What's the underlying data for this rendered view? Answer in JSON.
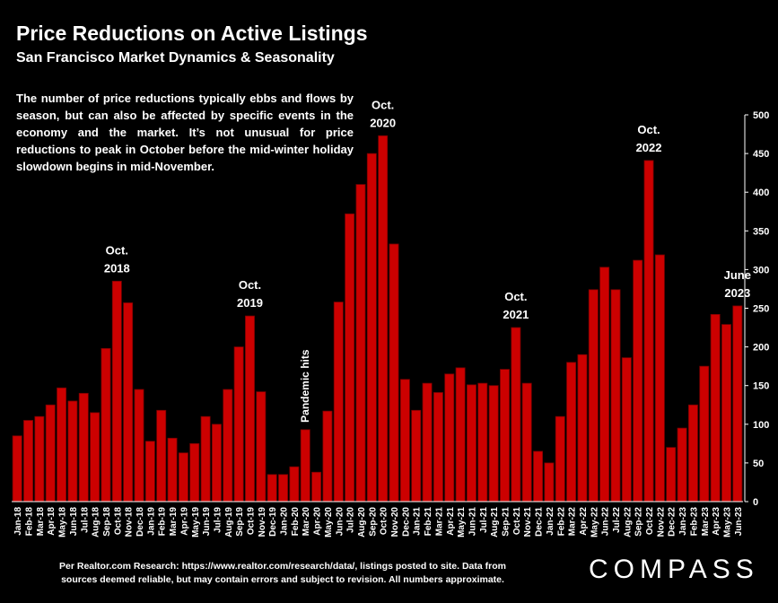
{
  "title": "Price Reductions on Active Listings",
  "subtitle": "San Francisco Market Dynamics & Seasonality",
  "description": "The number of price reductions typically ebbs and flows by season, but can also be affected by specific events in the economy and the market. It’s not unusual for price reductions to peak in October before the mid-winter holiday slowdown begins in mid-November.",
  "footnote": {
    "line1": "Per Realtor.com Research:  https://www.realtor.com/research/data/, listings posted to site. Data from",
    "line2": "sources deemed reliable, but may contain errors and subject to revision. All numbers approximate."
  },
  "logo": "COMPASS",
  "colors": {
    "background": "#000000",
    "bar": "#cc0000",
    "bar_edge": "#7a0000",
    "text": "#ffffff"
  },
  "chart_data": {
    "type": "bar",
    "categories": [
      "Jan-18",
      "Feb-18",
      "Mar-18",
      "Apr-18",
      "May-18",
      "Jun-18",
      "Jul-18",
      "Aug-18",
      "Sep-18",
      "Oct-18",
      "Nov-18",
      "Dec-18",
      "Jan-19",
      "Feb-19",
      "Mar-19",
      "Apr-19",
      "May-19",
      "Jun-19",
      "Jul-19",
      "Aug-19",
      "Sep-19",
      "Oct-19",
      "Nov-19",
      "Dec-19",
      "Jan-20",
      "Feb-20",
      "Mar-20",
      "Apr-20",
      "May-20",
      "Jun-20",
      "Jul-20",
      "Aug-20",
      "Sep-20",
      "Oct-20",
      "Nov-20",
      "Dec-20",
      "Jan-21",
      "Feb-21",
      "Mar-21",
      "Apr-21",
      "May-21",
      "Jun-21",
      "Jul-21",
      "Aug-21",
      "Sep-21",
      "Oct-21",
      "Nov-21",
      "Dec-21",
      "Jan-22",
      "Feb-22",
      "Mar-22",
      "Apr-22",
      "May-22",
      "Jun-22",
      "Jul-22",
      "Aug-22",
      "Sep-22",
      "Oct-22",
      "Nov-22",
      "Dec-22",
      "Jan-23",
      "Feb-23",
      "Mar-23",
      "Apr-23",
      "May-23",
      "Jun-23"
    ],
    "values": [
      85,
      105,
      110,
      125,
      147,
      130,
      140,
      115,
      198,
      285,
      257,
      145,
      78,
      118,
      82,
      63,
      75,
      110,
      100,
      145,
      200,
      240,
      142,
      35,
      35,
      45,
      93,
      38,
      117,
      258,
      372,
      410,
      450,
      473,
      333,
      158,
      118,
      153,
      141,
      165,
      173,
      151,
      153,
      150,
      171,
      225,
      153,
      65,
      50,
      110,
      180,
      190,
      274,
      303,
      274,
      186,
      312,
      441,
      319,
      70,
      95,
      125,
      175,
      242,
      229,
      253
    ],
    "ylim": [
      0,
      500
    ],
    "yticks": [
      0,
      50,
      100,
      150,
      200,
      250,
      300,
      350,
      400,
      450,
      500
    ],
    "y_axis_side": "right",
    "grid": false,
    "annotations": [
      {
        "index": 9,
        "lines": [
          "Oct.",
          "2018"
        ]
      },
      {
        "index": 21,
        "lines": [
          "Oct.",
          "2019"
        ]
      },
      {
        "index": 26,
        "lines": [
          "Pandemic hits"
        ],
        "rotated": true
      },
      {
        "index": 33,
        "lines": [
          "Oct.",
          "2020"
        ]
      },
      {
        "index": 45,
        "lines": [
          "Oct.",
          "2021"
        ]
      },
      {
        "index": 57,
        "lines": [
          "Oct.",
          "2022"
        ]
      },
      {
        "index": 65,
        "lines": [
          "June",
          "2023"
        ]
      }
    ]
  }
}
